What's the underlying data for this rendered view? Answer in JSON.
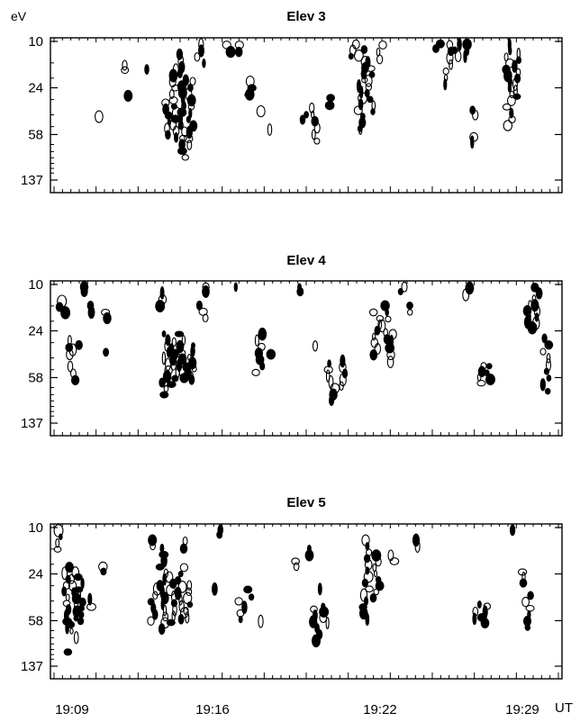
{
  "figure": {
    "energy_unit": "eV",
    "time_unit": "UT",
    "x_tick_labels": [
      "19:09",
      "19:16",
      "19:22",
      "19:29"
    ],
    "ink_color": "#000000",
    "background_color": "#ffffff"
  },
  "chart_data": [
    {
      "type": "heatmap",
      "title": "Elev 3",
      "ylabel": "eV",
      "xlabel": "UT",
      "y_ticks": [
        "10",
        "24",
        "58",
        "137"
      ],
      "x_ticks": [
        "19:09",
        "19:16",
        "19:22",
        "19:29"
      ],
      "xlim_minutes": [
        0,
        24
      ],
      "ylim_ev": [
        10,
        137
      ],
      "y_scale": "log",
      "grid": false,
      "style": "black contours on white",
      "blobs": [
        {
          "t": 4.5,
          "e_lo": 15,
          "e_hi": 18
        },
        {
          "t": 4.7,
          "e_lo": 26,
          "e_hi": 30
        },
        {
          "t": 5.9,
          "e_lo": 16,
          "e_hi": 18
        },
        {
          "t": 3.0,
          "e_lo": 40,
          "e_hi": 42
        },
        {
          "t": 8.4,
          "e_lo": 12,
          "e_hi": 95
        },
        {
          "t": 7.9,
          "e_lo": 16,
          "e_hi": 65
        },
        {
          "t": 9.0,
          "e_lo": 20,
          "e_hi": 75
        },
        {
          "t": 7.4,
          "e_lo": 30,
          "e_hi": 62
        },
        {
          "t": 9.6,
          "e_lo": 10,
          "e_hi": 16
        },
        {
          "t": 11.5,
          "e_lo": 10,
          "e_hi": 13
        },
        {
          "t": 12.1,
          "e_lo": 10,
          "e_hi": 13
        },
        {
          "t": 12.6,
          "e_lo": 26,
          "e_hi": 29
        },
        {
          "t": 13.0,
          "e_lo": 20,
          "e_hi": 29
        },
        {
          "t": 13.7,
          "e_lo": 35,
          "e_hi": 40
        },
        {
          "t": 14.1,
          "e_lo": 50,
          "e_hi": 56
        },
        {
          "t": 16.5,
          "e_lo": 38,
          "e_hi": 46
        },
        {
          "t": 17.2,
          "e_lo": 33,
          "e_hi": 70
        },
        {
          "t": 18.1,
          "e_lo": 27,
          "e_hi": 36
        },
        {
          "t": 19.7,
          "e_lo": 10,
          "e_hi": 14
        },
        {
          "t": 20.3,
          "e_lo": 11,
          "e_hi": 55
        },
        {
          "t": 20.9,
          "e_lo": 14,
          "e_hi": 40
        },
        {
          "t": 21.5,
          "e_lo": 10,
          "e_hi": 15
        },
        {
          "t": 20.2,
          "e_lo": 50,
          "e_hi": 56
        },
        {
          "t": 25.4,
          "e_lo": 10,
          "e_hi": 12
        },
        {
          "t": 26.0,
          "e_lo": 10,
          "e_hi": 24
        },
        {
          "t": 26.6,
          "e_lo": 10,
          "e_hi": 14
        },
        {
          "t": 27.2,
          "e_lo": 10,
          "e_hi": 14
        },
        {
          "t": 27.6,
          "e_lo": 58,
          "e_hi": 70
        },
        {
          "t": 27.9,
          "e_lo": 35,
          "e_hi": 42
        },
        {
          "t": 30.1,
          "e_lo": 10,
          "e_hi": 52
        },
        {
          "t": 30.6,
          "e_lo": 12,
          "e_hi": 30
        }
      ]
    },
    {
      "type": "heatmap",
      "title": "Elev 4",
      "ylabel": "eV",
      "xlabel": "UT",
      "y_ticks": [
        "10",
        "24",
        "58",
        "137"
      ],
      "x_ticks": [
        "19:09",
        "19:16",
        "19:22",
        "19:29"
      ],
      "xlim_minutes": [
        0,
        24
      ],
      "ylim_ev": [
        10,
        137
      ],
      "y_scale": "log",
      "grid": false,
      "style": "black contours on white",
      "blobs": [
        {
          "t": 0.4,
          "e_lo": 13,
          "e_hi": 18
        },
        {
          "t": 0.7,
          "e_lo": 27,
          "e_hi": 40
        },
        {
          "t": 1.1,
          "e_lo": 44,
          "e_hi": 65
        },
        {
          "t": 1.3,
          "e_lo": 30,
          "e_hi": 36
        },
        {
          "t": 2.0,
          "e_lo": 10,
          "e_hi": 12
        },
        {
          "t": 2.5,
          "e_lo": 14,
          "e_hi": 18
        },
        {
          "t": 3.2,
          "e_lo": 16,
          "e_hi": 20
        },
        {
          "t": 3.4,
          "e_lo": 34,
          "e_hi": 38
        },
        {
          "t": 6.9,
          "e_lo": 11,
          "e_hi": 16
        },
        {
          "t": 7.3,
          "e_lo": 24,
          "e_hi": 85
        },
        {
          "t": 7.9,
          "e_lo": 28,
          "e_hi": 70
        },
        {
          "t": 8.4,
          "e_lo": 24,
          "e_hi": 62
        },
        {
          "t": 9.1,
          "e_lo": 30,
          "e_hi": 58
        },
        {
          "t": 8.8,
          "e_lo": 40,
          "e_hi": 64
        },
        {
          "t": 9.7,
          "e_lo": 14,
          "e_hi": 20
        },
        {
          "t": 10.1,
          "e_lo": 10,
          "e_hi": 12
        },
        {
          "t": 12.1,
          "e_lo": 10,
          "e_hi": 11
        },
        {
          "t": 13.5,
          "e_lo": 24,
          "e_hi": 56
        },
        {
          "t": 14.2,
          "e_lo": 35,
          "e_hi": 40
        },
        {
          "t": 16.4,
          "e_lo": 10,
          "e_hi": 12
        },
        {
          "t": 17.1,
          "e_lo": 30,
          "e_hi": 34
        },
        {
          "t": 18.3,
          "e_lo": 42,
          "e_hi": 95
        },
        {
          "t": 19.0,
          "e_lo": 40,
          "e_hi": 72
        },
        {
          "t": 21.3,
          "e_lo": 16,
          "e_hi": 40
        },
        {
          "t": 21.9,
          "e_lo": 14,
          "e_hi": 30
        },
        {
          "t": 22.3,
          "e_lo": 24,
          "e_hi": 46
        },
        {
          "t": 23.0,
          "e_lo": 10,
          "e_hi": 12
        },
        {
          "t": 23.3,
          "e_lo": 14,
          "e_hi": 18
        },
        {
          "t": 27.4,
          "e_lo": 10,
          "e_hi": 13
        },
        {
          "t": 28.3,
          "e_lo": 44,
          "e_hi": 68
        },
        {
          "t": 28.8,
          "e_lo": 44,
          "e_hi": 64
        },
        {
          "t": 31.4,
          "e_lo": 14,
          "e_hi": 24
        },
        {
          "t": 31.9,
          "e_lo": 10,
          "e_hi": 22
        },
        {
          "t": 32.5,
          "e_lo": 26,
          "e_hi": 80
        }
      ]
    },
    {
      "type": "heatmap",
      "title": "Elev 5",
      "ylabel": "eV",
      "xlabel": "UT",
      "y_ticks": [
        "10",
        "24",
        "58",
        "137"
      ],
      "x_ticks": [
        "19:09",
        "19:16",
        "19:22",
        "19:29"
      ],
      "xlim_minutes": [
        0,
        24
      ],
      "ylim_ev": [
        10,
        137
      ],
      "y_scale": "log",
      "grid": false,
      "style": "black contours on white",
      "blobs": [
        {
          "t": 0.3,
          "e_lo": 10,
          "e_hi": 16
        },
        {
          "t": 0.7,
          "e_lo": 20,
          "e_hi": 70
        },
        {
          "t": 1.2,
          "e_lo": 22,
          "e_hi": 85
        },
        {
          "t": 1.7,
          "e_lo": 24,
          "e_hi": 62
        },
        {
          "t": 2.2,
          "e_lo": 36,
          "e_hi": 48
        },
        {
          "t": 0.9,
          "e_lo": 100,
          "e_hi": 110
        },
        {
          "t": 3.0,
          "e_lo": 20,
          "e_hi": 24
        },
        {
          "t": 6.2,
          "e_lo": 12,
          "e_hi": 15
        },
        {
          "t": 6.5,
          "e_lo": 30,
          "e_hi": 62
        },
        {
          "t": 7.1,
          "e_lo": 14,
          "e_hi": 72
        },
        {
          "t": 7.7,
          "e_lo": 24,
          "e_hi": 64
        },
        {
          "t": 8.3,
          "e_lo": 20,
          "e_hi": 60
        },
        {
          "t": 8.8,
          "e_lo": 28,
          "e_hi": 58
        },
        {
          "t": 8.6,
          "e_lo": 12,
          "e_hi": 16
        },
        {
          "t": 10.4,
          "e_lo": 30,
          "e_hi": 34
        },
        {
          "t": 10.8,
          "e_lo": 10,
          "e_hi": 12
        },
        {
          "t": 12.3,
          "e_lo": 38,
          "e_hi": 60
        },
        {
          "t": 12.8,
          "e_lo": 30,
          "e_hi": 40
        },
        {
          "t": 13.4,
          "e_lo": 54,
          "e_hi": 64
        },
        {
          "t": 16.0,
          "e_lo": 18,
          "e_hi": 22
        },
        {
          "t": 17.0,
          "e_lo": 14,
          "e_hi": 18
        },
        {
          "t": 17.6,
          "e_lo": 30,
          "e_hi": 34
        },
        {
          "t": 17.3,
          "e_lo": 44,
          "e_hi": 90
        },
        {
          "t": 17.9,
          "e_lo": 42,
          "e_hi": 64
        },
        {
          "t": 20.6,
          "e_lo": 12,
          "e_hi": 60
        },
        {
          "t": 21.3,
          "e_lo": 16,
          "e_hi": 40
        },
        {
          "t": 22.4,
          "e_lo": 16,
          "e_hi": 20
        },
        {
          "t": 23.8,
          "e_lo": 12,
          "e_hi": 15
        },
        {
          "t": 27.9,
          "e_lo": 40,
          "e_hi": 60
        },
        {
          "t": 28.4,
          "e_lo": 42,
          "e_hi": 64
        },
        {
          "t": 30.5,
          "e_lo": 10,
          "e_hi": 11
        },
        {
          "t": 31.0,
          "e_lo": 22,
          "e_hi": 30
        },
        {
          "t": 31.3,
          "e_lo": 34,
          "e_hi": 70
        }
      ]
    }
  ]
}
